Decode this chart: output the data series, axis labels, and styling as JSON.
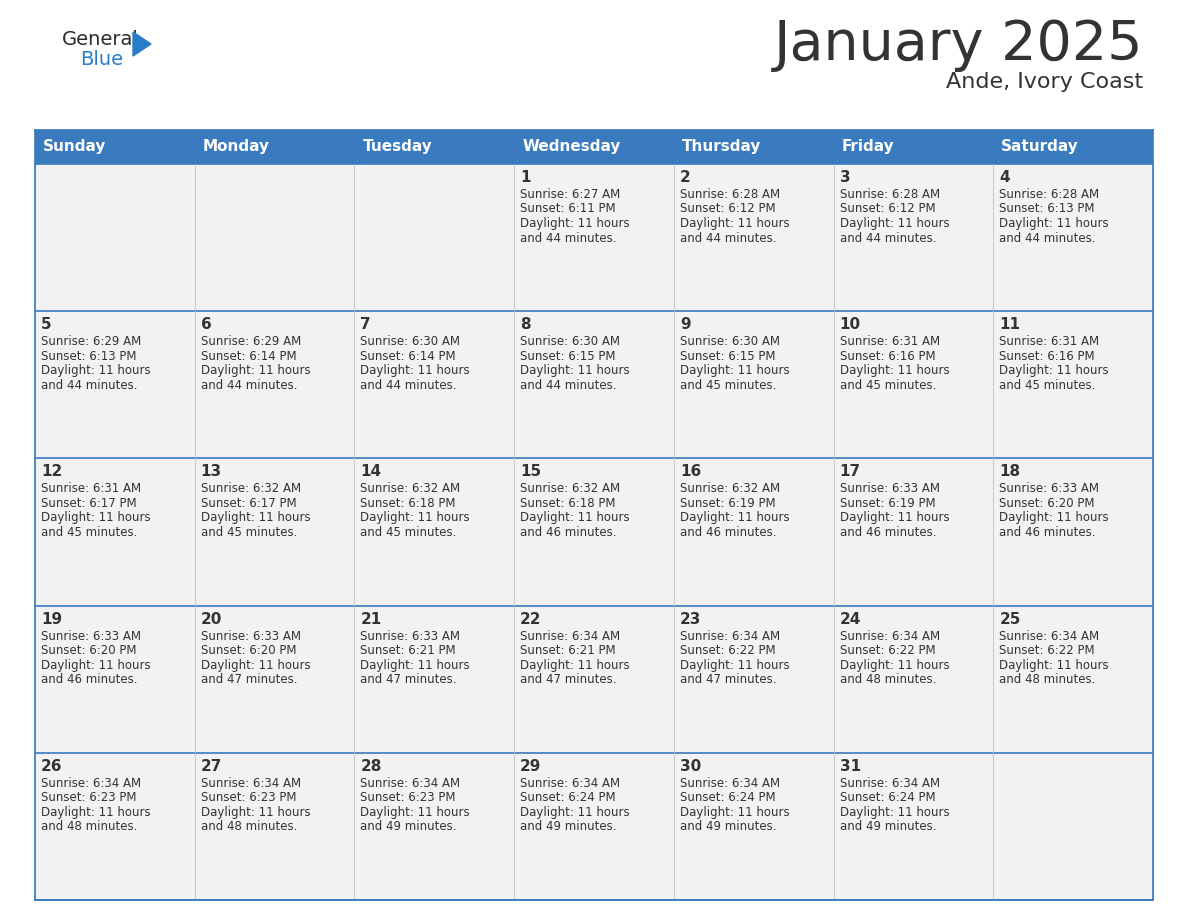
{
  "title": "January 2025",
  "subtitle": "Ande, Ivory Coast",
  "header_color": "#3a7bbf",
  "header_text_color": "#ffffff",
  "cell_bg_color": "#f2f2f2",
  "border_color": "#3a7bbf",
  "row_line_color": "#3a7bbf",
  "col_line_color": "#c0c0c0",
  "text_color": "#333333",
  "days_of_week": [
    "Sunday",
    "Monday",
    "Tuesday",
    "Wednesday",
    "Thursday",
    "Friday",
    "Saturday"
  ],
  "calendar_data": [
    [
      "",
      "",
      "",
      "1",
      "2",
      "3",
      "4"
    ],
    [
      "5",
      "6",
      "7",
      "8",
      "9",
      "10",
      "11"
    ],
    [
      "12",
      "13",
      "14",
      "15",
      "16",
      "17",
      "18"
    ],
    [
      "19",
      "20",
      "21",
      "22",
      "23",
      "24",
      "25"
    ],
    [
      "26",
      "27",
      "28",
      "29",
      "30",
      "31",
      ""
    ]
  ],
  "cell_data": {
    "1": [
      "Sunrise: 6:27 AM",
      "Sunset: 6:11 PM",
      "Daylight: 11 hours",
      "and 44 minutes."
    ],
    "2": [
      "Sunrise: 6:28 AM",
      "Sunset: 6:12 PM",
      "Daylight: 11 hours",
      "and 44 minutes."
    ],
    "3": [
      "Sunrise: 6:28 AM",
      "Sunset: 6:12 PM",
      "Daylight: 11 hours",
      "and 44 minutes."
    ],
    "4": [
      "Sunrise: 6:28 AM",
      "Sunset: 6:13 PM",
      "Daylight: 11 hours",
      "and 44 minutes."
    ],
    "5": [
      "Sunrise: 6:29 AM",
      "Sunset: 6:13 PM",
      "Daylight: 11 hours",
      "and 44 minutes."
    ],
    "6": [
      "Sunrise: 6:29 AM",
      "Sunset: 6:14 PM",
      "Daylight: 11 hours",
      "and 44 minutes."
    ],
    "7": [
      "Sunrise: 6:30 AM",
      "Sunset: 6:14 PM",
      "Daylight: 11 hours",
      "and 44 minutes."
    ],
    "8": [
      "Sunrise: 6:30 AM",
      "Sunset: 6:15 PM",
      "Daylight: 11 hours",
      "and 44 minutes."
    ],
    "9": [
      "Sunrise: 6:30 AM",
      "Sunset: 6:15 PM",
      "Daylight: 11 hours",
      "and 45 minutes."
    ],
    "10": [
      "Sunrise: 6:31 AM",
      "Sunset: 6:16 PM",
      "Daylight: 11 hours",
      "and 45 minutes."
    ],
    "11": [
      "Sunrise: 6:31 AM",
      "Sunset: 6:16 PM",
      "Daylight: 11 hours",
      "and 45 minutes."
    ],
    "12": [
      "Sunrise: 6:31 AM",
      "Sunset: 6:17 PM",
      "Daylight: 11 hours",
      "and 45 minutes."
    ],
    "13": [
      "Sunrise: 6:32 AM",
      "Sunset: 6:17 PM",
      "Daylight: 11 hours",
      "and 45 minutes."
    ],
    "14": [
      "Sunrise: 6:32 AM",
      "Sunset: 6:18 PM",
      "Daylight: 11 hours",
      "and 45 minutes."
    ],
    "15": [
      "Sunrise: 6:32 AM",
      "Sunset: 6:18 PM",
      "Daylight: 11 hours",
      "and 46 minutes."
    ],
    "16": [
      "Sunrise: 6:32 AM",
      "Sunset: 6:19 PM",
      "Daylight: 11 hours",
      "and 46 minutes."
    ],
    "17": [
      "Sunrise: 6:33 AM",
      "Sunset: 6:19 PM",
      "Daylight: 11 hours",
      "and 46 minutes."
    ],
    "18": [
      "Sunrise: 6:33 AM",
      "Sunset: 6:20 PM",
      "Daylight: 11 hours",
      "and 46 minutes."
    ],
    "19": [
      "Sunrise: 6:33 AM",
      "Sunset: 6:20 PM",
      "Daylight: 11 hours",
      "and 46 minutes."
    ],
    "20": [
      "Sunrise: 6:33 AM",
      "Sunset: 6:20 PM",
      "Daylight: 11 hours",
      "and 47 minutes."
    ],
    "21": [
      "Sunrise: 6:33 AM",
      "Sunset: 6:21 PM",
      "Daylight: 11 hours",
      "and 47 minutes."
    ],
    "22": [
      "Sunrise: 6:34 AM",
      "Sunset: 6:21 PM",
      "Daylight: 11 hours",
      "and 47 minutes."
    ],
    "23": [
      "Sunrise: 6:34 AM",
      "Sunset: 6:22 PM",
      "Daylight: 11 hours",
      "and 47 minutes."
    ],
    "24": [
      "Sunrise: 6:34 AM",
      "Sunset: 6:22 PM",
      "Daylight: 11 hours",
      "and 48 minutes."
    ],
    "25": [
      "Sunrise: 6:34 AM",
      "Sunset: 6:22 PM",
      "Daylight: 11 hours",
      "and 48 minutes."
    ],
    "26": [
      "Sunrise: 6:34 AM",
      "Sunset: 6:23 PM",
      "Daylight: 11 hours",
      "and 48 minutes."
    ],
    "27": [
      "Sunrise: 6:34 AM",
      "Sunset: 6:23 PM",
      "Daylight: 11 hours",
      "and 48 minutes."
    ],
    "28": [
      "Sunrise: 6:34 AM",
      "Sunset: 6:23 PM",
      "Daylight: 11 hours",
      "and 49 minutes."
    ],
    "29": [
      "Sunrise: 6:34 AM",
      "Sunset: 6:24 PM",
      "Daylight: 11 hours",
      "and 49 minutes."
    ],
    "30": [
      "Sunrise: 6:34 AM",
      "Sunset: 6:24 PM",
      "Daylight: 11 hours",
      "and 49 minutes."
    ],
    "31": [
      "Sunrise: 6:34 AM",
      "Sunset: 6:24 PM",
      "Daylight: 11 hours",
      "and 49 minutes."
    ]
  },
  "logo_general_color": "#2b2b2b",
  "logo_blue_color": "#2a7dc9"
}
